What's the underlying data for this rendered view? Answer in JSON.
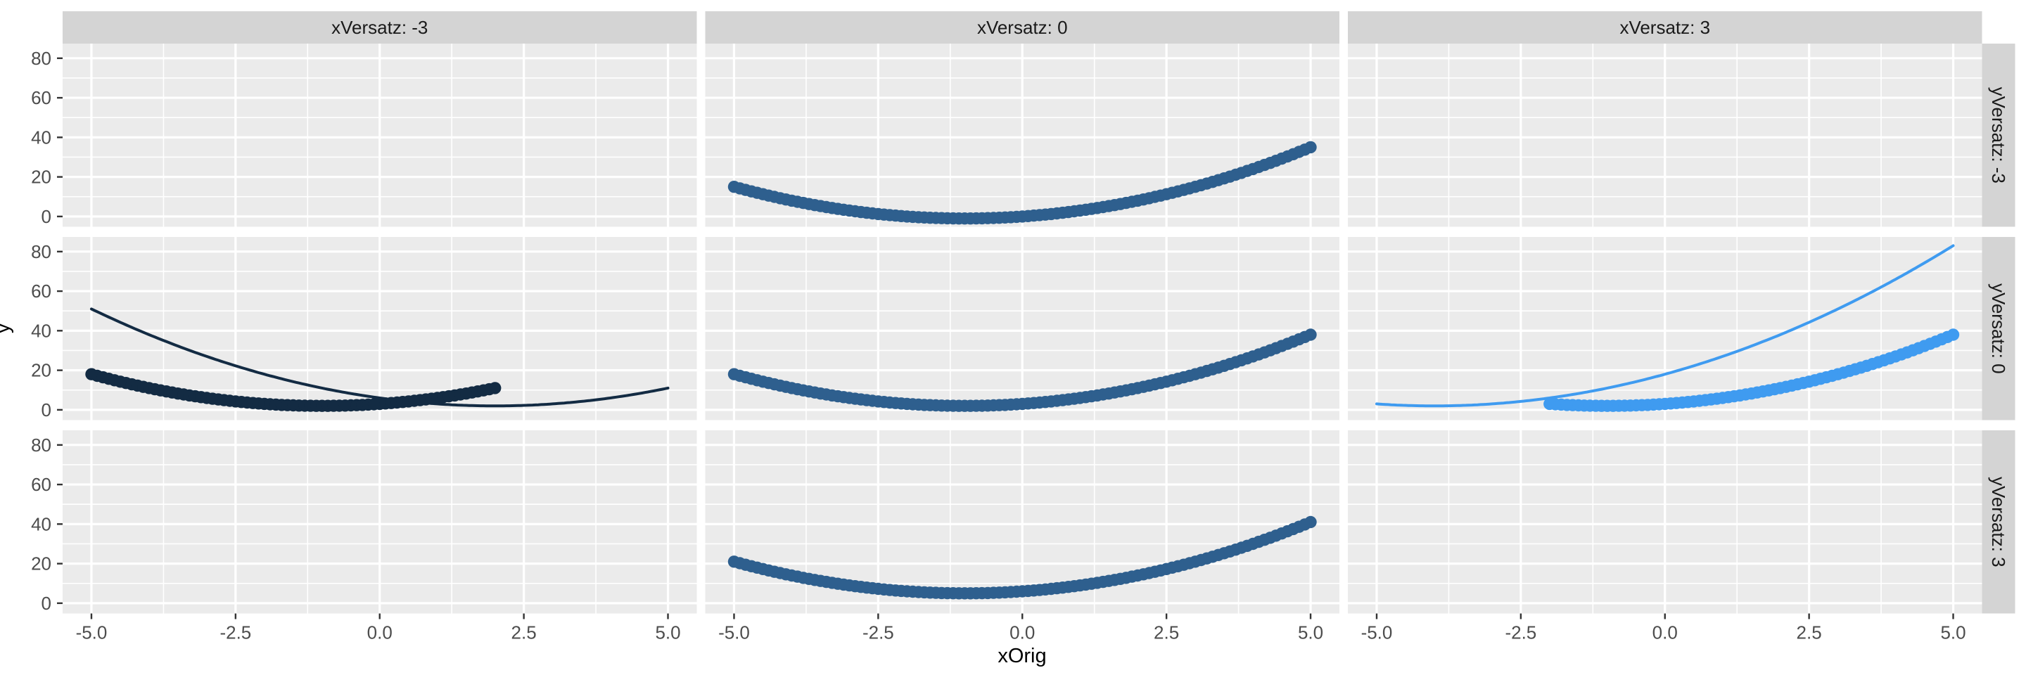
{
  "figure": {
    "x_axis_title": "xOrig",
    "y_axis_title": "y"
  },
  "chart_data": {
    "type": "scatter",
    "title": "",
    "xlabel": "xOrig",
    "ylabel": "y",
    "grid": true,
    "legend": "none",
    "facet_grid": {
      "col_variable": "xVersatz",
      "row_variable": "yVersatz",
      "col_labels": [
        "xVersatz: -3",
        "xVersatz: 0",
        "xVersatz: 3"
      ],
      "row_labels": [
        "yVersatz: -3",
        "yVersatz: 0",
        "yVersatz: 3"
      ]
    },
    "x": {
      "tick_labels": [
        "-5.0",
        "-2.5",
        "0.0",
        "2.5",
        "5.0"
      ],
      "tick_values": [
        -5,
        -2.5,
        0,
        2.5,
        5
      ],
      "minor_values": [
        -3.75,
        -1.25,
        1.25,
        3.75
      ],
      "lim": [
        -5.5,
        5.5
      ]
    },
    "y": {
      "tick_labels": [
        "0",
        "20",
        "40",
        "60",
        "80"
      ],
      "tick_values": [
        0,
        20,
        40,
        60,
        80
      ],
      "minor_values": [
        10,
        30,
        50,
        70
      ],
      "lim": [
        -5.2,
        87.4
      ]
    },
    "theme": {
      "panel_bg": "#EBEBEB",
      "strip_bg": "#D4D4D4",
      "grid_color": "#FFFFFF",
      "tick_color": "#333333",
      "tick_label_color": "#4D4D4D",
      "strip_text_color": "#1A1A1A",
      "axis_title_color": "#000000"
    },
    "colors_by_xVersatz": {
      "-3": "#132B43",
      "0": "#2E5F8E",
      "3": "#3F9BF0"
    },
    "base_function": "y = (x+1)^2 + 2",
    "style": {
      "point_radius": 8.7,
      "point_step": 0.1,
      "line_width": 4,
      "line_step": 0.05
    },
    "panels": [
      {
        "row": 0,
        "col": 1,
        "series": [
          {
            "geom": "points",
            "color": "#2E5F8E",
            "formula": "y = (x+1)^2 - 1",
            "a": 1,
            "vertex": [
              -1,
              -1
            ],
            "x_range": [
              -5,
              5
            ],
            "points_at_integer_x": [
              [
                -5,
                15
              ],
              [
                -4,
                8
              ],
              [
                -3,
                3
              ],
              [
                -2,
                0
              ],
              [
                -1,
                -1
              ],
              [
                0,
                0
              ],
              [
                1,
                3
              ],
              [
                2,
                8
              ],
              [
                3,
                15
              ],
              [
                4,
                24
              ],
              [
                5,
                35
              ]
            ]
          }
        ]
      },
      {
        "row": 1,
        "col": 0,
        "series": [
          {
            "geom": "line",
            "color": "#132B43",
            "formula": "y = (x-2)^2 + 2",
            "a": 1,
            "vertex": [
              2,
              2
            ],
            "x_range": [
              -5,
              5
            ],
            "points_at_integer_x": [
              [
                -5,
                51
              ],
              [
                -4,
                38
              ],
              [
                -3,
                27
              ],
              [
                -2,
                18
              ],
              [
                -1,
                11
              ],
              [
                0,
                6
              ],
              [
                1,
                3
              ],
              [
                2,
                2
              ],
              [
                3,
                3
              ],
              [
                4,
                6
              ],
              [
                5,
                11
              ]
            ]
          },
          {
            "geom": "points",
            "color": "#132B43",
            "formula": "y = (x+1)^2 + 2",
            "a": 1,
            "vertex": [
              -1,
              2
            ],
            "x_range": [
              -5,
              2
            ],
            "points_at_integer_x": [
              [
                -5,
                18
              ],
              [
                -4,
                11
              ],
              [
                -3,
                6
              ],
              [
                -2,
                3
              ],
              [
                -1,
                2
              ],
              [
                0,
                3
              ],
              [
                1,
                6
              ],
              [
                2,
                11
              ]
            ]
          }
        ]
      },
      {
        "row": 1,
        "col": 1,
        "series": [
          {
            "geom": "points",
            "color": "#2E5F8E",
            "formula": "y = (x+1)^2 + 2",
            "a": 1,
            "vertex": [
              -1,
              2
            ],
            "x_range": [
              -5,
              5
            ],
            "points_at_integer_x": [
              [
                -5,
                18
              ],
              [
                -4,
                11
              ],
              [
                -3,
                6
              ],
              [
                -2,
                3
              ],
              [
                -1,
                2
              ],
              [
                0,
                3
              ],
              [
                1,
                6
              ],
              [
                2,
                11
              ],
              [
                3,
                18
              ],
              [
                4,
                27
              ],
              [
                5,
                38
              ]
            ]
          }
        ]
      },
      {
        "row": 1,
        "col": 2,
        "series": [
          {
            "geom": "line",
            "color": "#3F9BF0",
            "formula": "y = (x+4)^2 + 2",
            "a": 1,
            "vertex": [
              -4,
              2
            ],
            "x_range": [
              -5,
              5
            ],
            "points_at_integer_x": [
              [
                -5,
                3
              ],
              [
                -4,
                2
              ],
              [
                -3,
                3
              ],
              [
                -2,
                6
              ],
              [
                -1,
                11
              ],
              [
                0,
                18
              ],
              [
                1,
                27
              ],
              [
                2,
                38
              ],
              [
                3,
                51
              ],
              [
                4,
                66
              ],
              [
                5,
                83
              ]
            ]
          },
          {
            "geom": "points",
            "color": "#3F9BF0",
            "formula": "y = (x+1)^2 + 2",
            "a": 1,
            "vertex": [
              -1,
              2
            ],
            "x_range": [
              -2,
              5
            ],
            "points_at_integer_x": [
              [
                -2,
                3
              ],
              [
                -1,
                2
              ],
              [
                0,
                3
              ],
              [
                1,
                6
              ],
              [
                2,
                11
              ],
              [
                3,
                18
              ],
              [
                4,
                27
              ],
              [
                5,
                38
              ]
            ]
          }
        ]
      },
      {
        "row": 2,
        "col": 1,
        "series": [
          {
            "geom": "points",
            "color": "#2E5F8E",
            "formula": "y = (x+1)^2 + 5",
            "a": 1,
            "vertex": [
              -1,
              5
            ],
            "x_range": [
              -5,
              5
            ],
            "points_at_integer_x": [
              [
                -5,
                21
              ],
              [
                -4,
                14
              ],
              [
                -3,
                9
              ],
              [
                -2,
                6
              ],
              [
                -1,
                5
              ],
              [
                0,
                6
              ],
              [
                1,
                9
              ],
              [
                2,
                14
              ],
              [
                3,
                21
              ],
              [
                4,
                30
              ],
              [
                5,
                41
              ]
            ]
          }
        ]
      }
    ]
  }
}
